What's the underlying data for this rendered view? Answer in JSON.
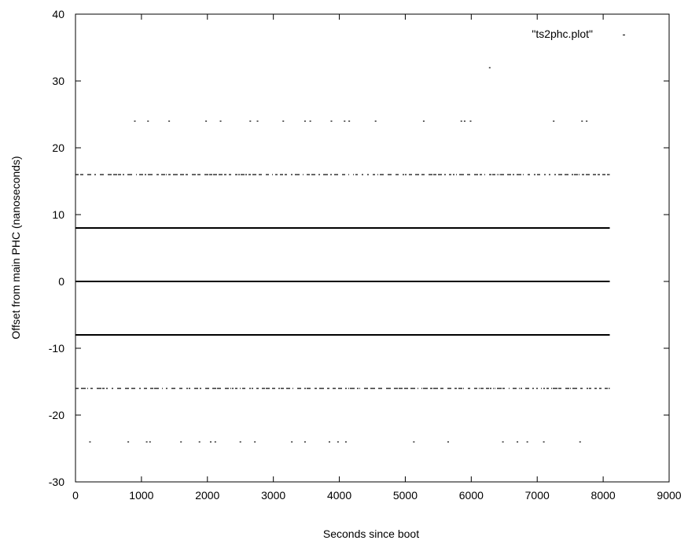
{
  "chart_data": {
    "type": "scatter",
    "title": "",
    "xlabel": "Seconds since boot",
    "ylabel": "Offset from main PHC (nanoseconds)",
    "xlim": [
      0,
      9000
    ],
    "ylim": [
      -30,
      40
    ],
    "xticks": [
      0,
      1000,
      2000,
      3000,
      4000,
      5000,
      6000,
      7000,
      8000,
      9000
    ],
    "yticks": [
      -30,
      -20,
      -10,
      0,
      10,
      20,
      30,
      40
    ],
    "grid": false,
    "legend": {
      "placement": "top-right",
      "entries": [
        "\"ts2phc.plot\""
      ]
    },
    "series": [
      {
        "name": "\"ts2phc.plot\"",
        "color": "#000000",
        "bands": [
          {
            "y": 0,
            "x_range": [
              0,
              8100
            ],
            "density": "solid"
          },
          {
            "y": 8,
            "x_range": [
              0,
              8100
            ],
            "density": "solid"
          },
          {
            "y": -8,
            "x_range": [
              0,
              8100
            ],
            "density": "solid"
          },
          {
            "y": 16,
            "x_range": [
              0,
              8100
            ],
            "density": "medium"
          },
          {
            "y": -16,
            "x_range": [
              0,
              8100
            ],
            "density": "medium"
          }
        ],
        "points": [
          [
            900,
            24
          ],
          [
            1100,
            24
          ],
          [
            1420,
            24
          ],
          [
            1980,
            24
          ],
          [
            2200,
            24
          ],
          [
            2650,
            24
          ],
          [
            2760,
            24
          ],
          [
            3150,
            24
          ],
          [
            3480,
            24
          ],
          [
            3560,
            24
          ],
          [
            3880,
            24
          ],
          [
            4080,
            24
          ],
          [
            4150,
            24
          ],
          [
            4550,
            24
          ],
          [
            5280,
            24
          ],
          [
            5850,
            24
          ],
          [
            5900,
            24
          ],
          [
            5990,
            24
          ],
          [
            7250,
            24
          ],
          [
            7680,
            24
          ],
          [
            7750,
            24
          ],
          [
            6280,
            32
          ],
          [
            220,
            -24
          ],
          [
            800,
            -24
          ],
          [
            1080,
            -24
          ],
          [
            1130,
            -24
          ],
          [
            1600,
            -24
          ],
          [
            1880,
            -24
          ],
          [
            2050,
            -24
          ],
          [
            2120,
            -24
          ],
          [
            2500,
            -24
          ],
          [
            2720,
            -24
          ],
          [
            3280,
            -24
          ],
          [
            3480,
            -24
          ],
          [
            3850,
            -24
          ],
          [
            3980,
            -24
          ],
          [
            4100,
            -24
          ],
          [
            5130,
            -24
          ],
          [
            5650,
            -24
          ],
          [
            6480,
            -24
          ],
          [
            6700,
            -24
          ],
          [
            6850,
            -24
          ],
          [
            7100,
            -24
          ],
          [
            7650,
            -24
          ]
        ]
      }
    ]
  }
}
